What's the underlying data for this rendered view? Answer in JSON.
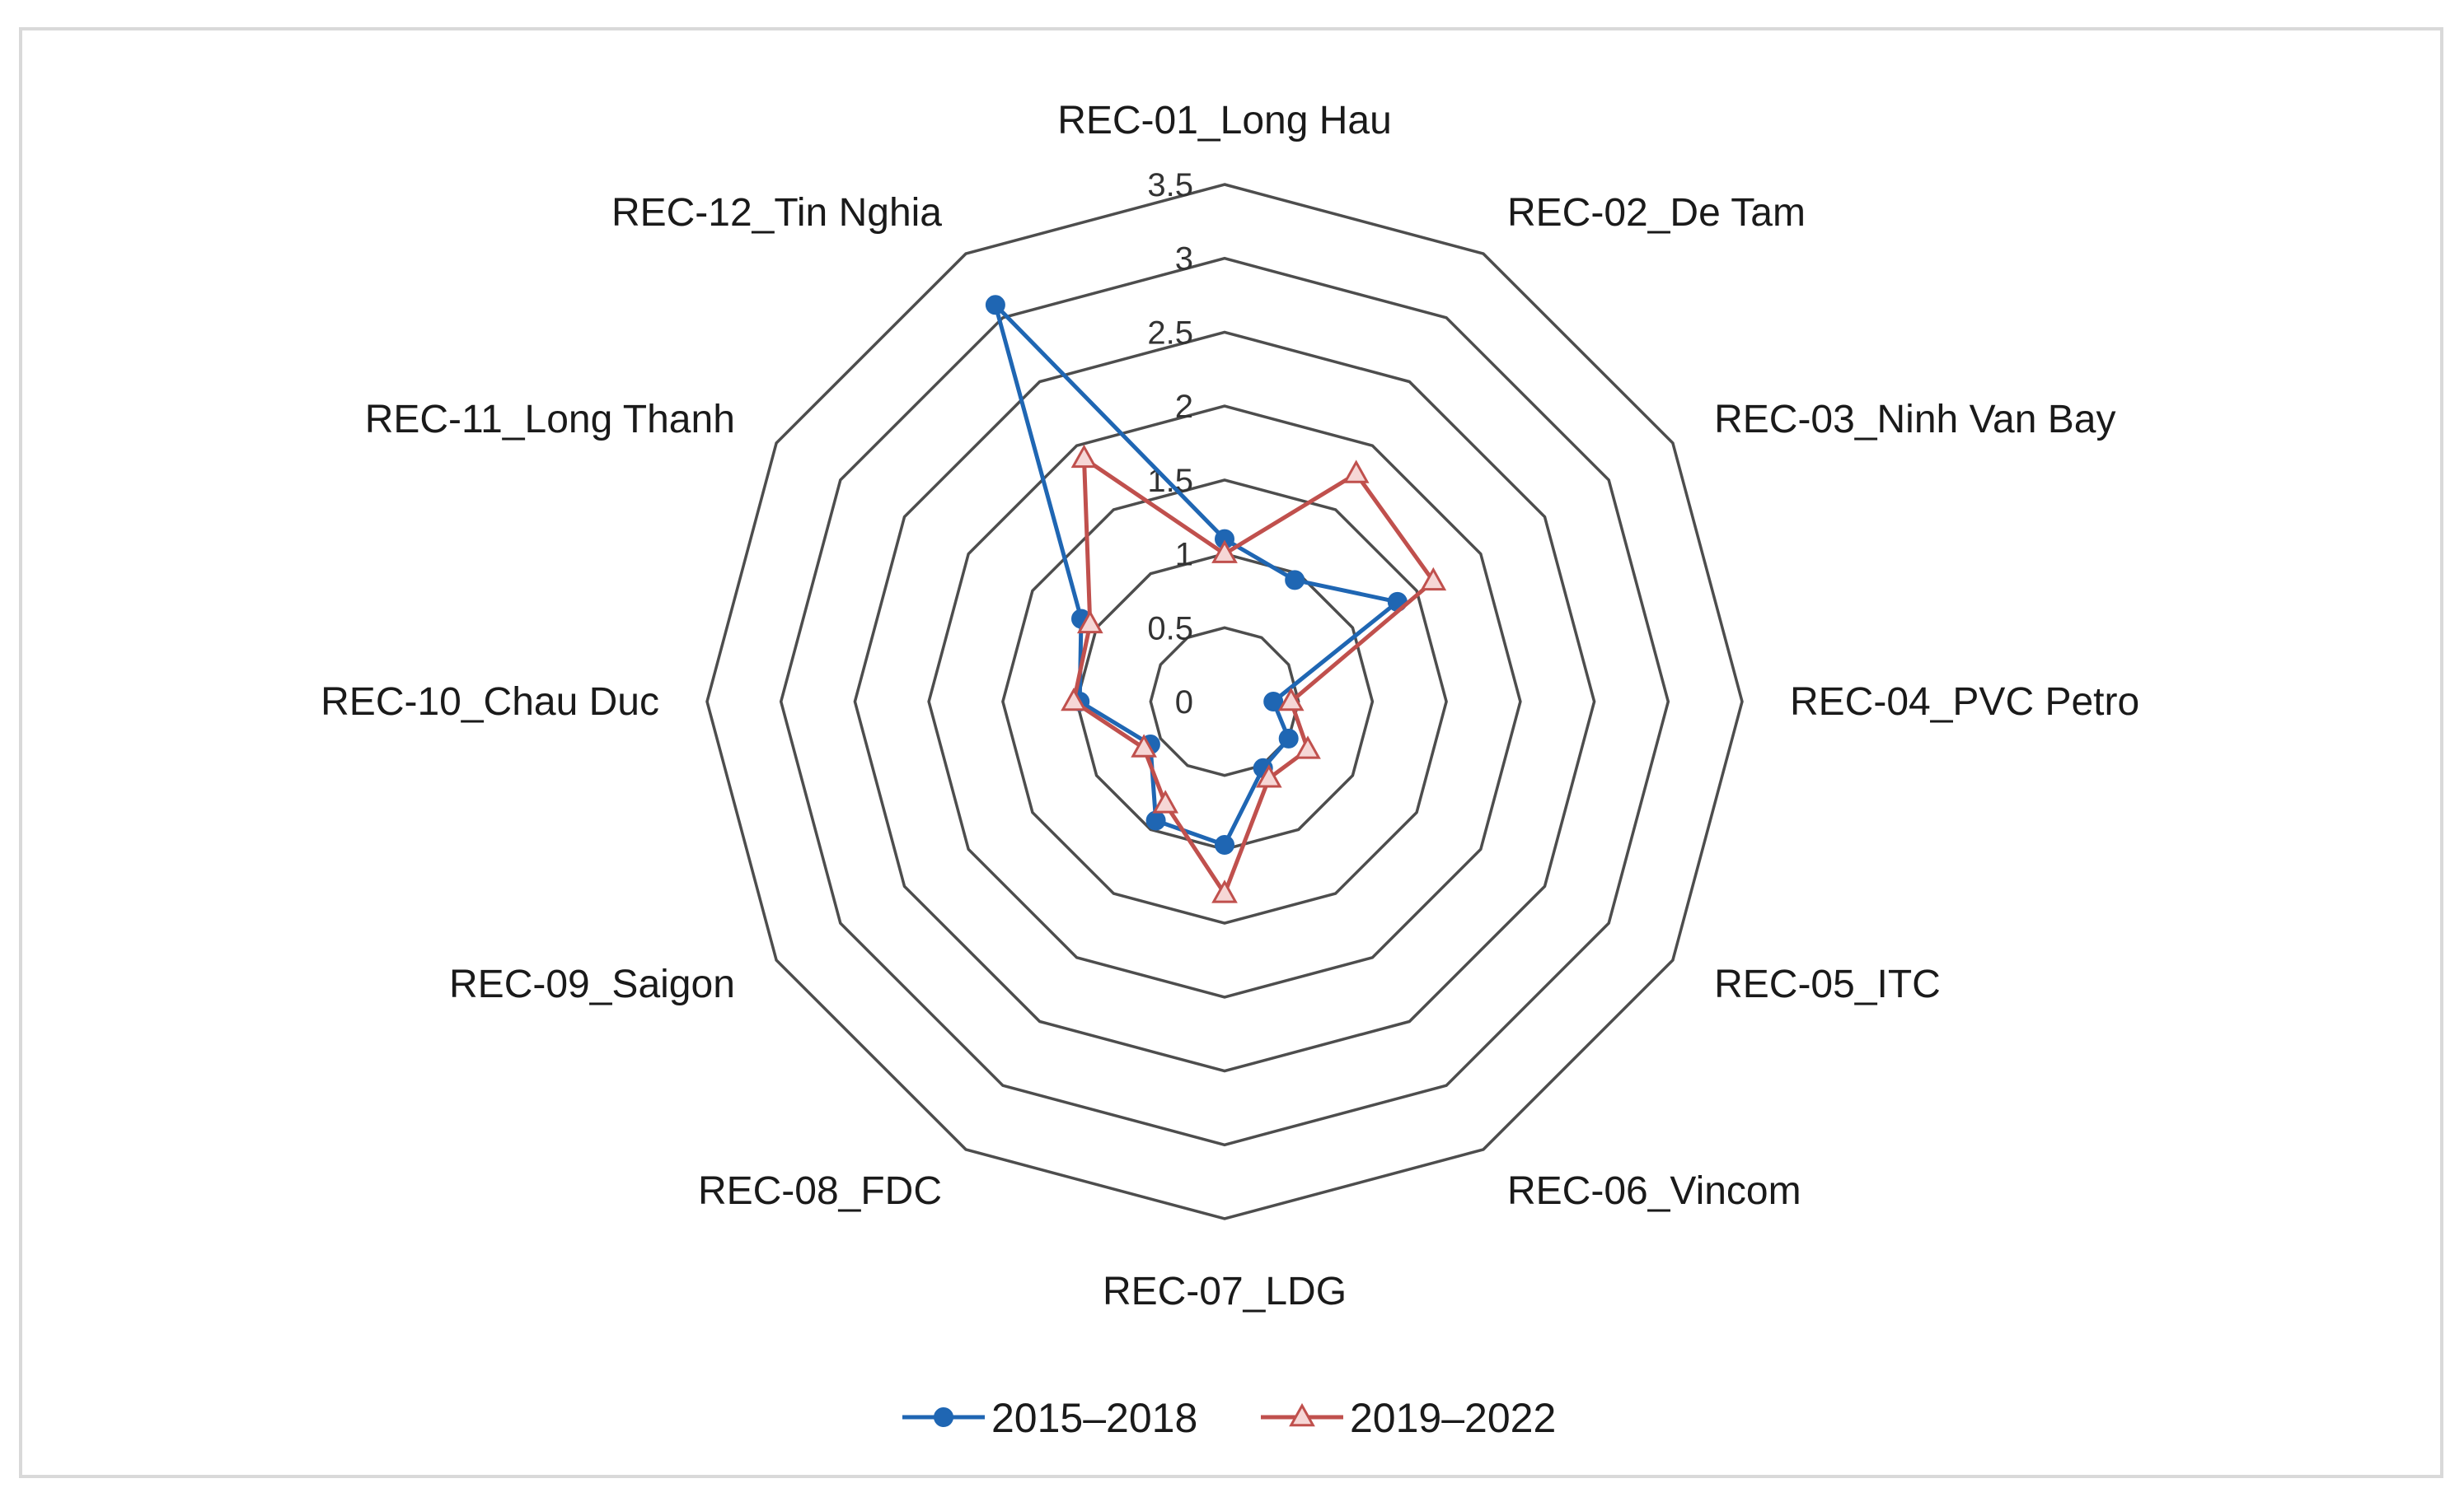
{
  "chart_data": {
    "type": "radar",
    "title": "",
    "categories": [
      "REC-01_Long Hau",
      "REC-02_De Tam",
      "REC-03_Ninh Van Bay",
      "REC-04_PVC Petro",
      "REC-05_ITC",
      "REC-06_Vincom",
      "REC-07_LDG",
      "REC-08_FDC",
      "REC-09_Saigon",
      "REC-10_Chau Duc",
      "REC-11_Long Thanh",
      "REC-12_Tin Nghia"
    ],
    "rlim": [
      0,
      3.5
    ],
    "ticks": [
      "0",
      "0.5",
      "1",
      "1.5",
      "2",
      "2.5",
      "3",
      "3.5"
    ],
    "tick_values": [
      0,
      0.5,
      1,
      1.5,
      2,
      2.5,
      3,
      3.5
    ],
    "legend_position": "bottom",
    "series": [
      {
        "name": "2015–2018",
        "color": "#1f66b3",
        "marker": "circle",
        "values": [
          1.1,
          0.95,
          1.35,
          0.33,
          0.5,
          0.52,
          0.97,
          0.93,
          0.58,
          0.98,
          1.12,
          3.1
        ]
      },
      {
        "name": "2019–2022",
        "color": "#c0504d",
        "marker": "triangle",
        "values": [
          1.0,
          1.78,
          1.63,
          0.45,
          0.65,
          0.6,
          1.3,
          0.8,
          0.63,
          1.02,
          1.05,
          1.9
        ]
      }
    ]
  }
}
